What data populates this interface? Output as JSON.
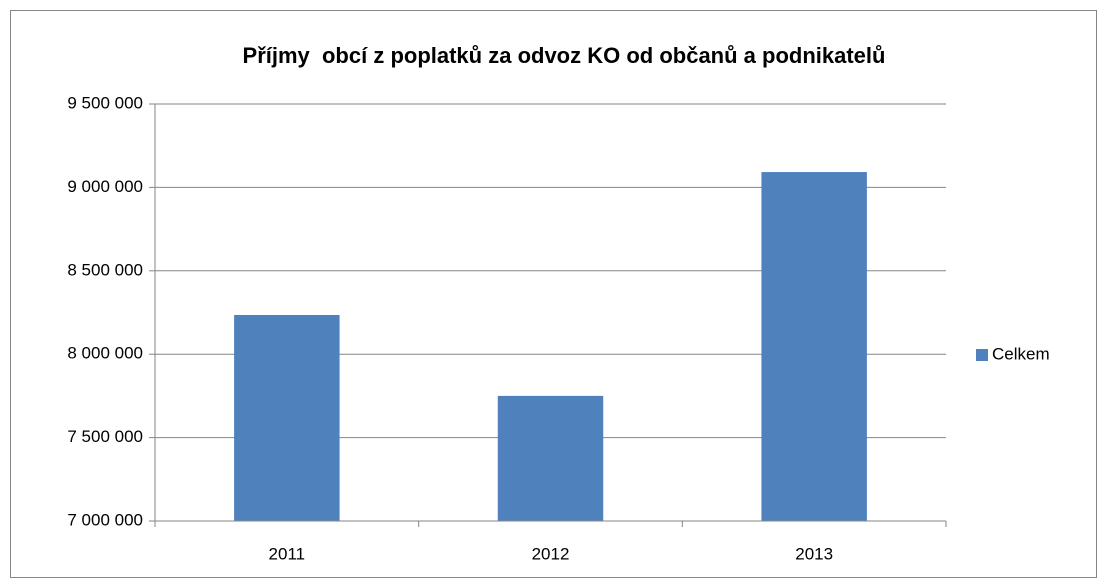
{
  "chart_data": {
    "type": "bar",
    "title": "Příjmy  obcí z poplatků za odvoz KO od občanů a podnikatelů",
    "categories": [
      "2011",
      "2012",
      "2013"
    ],
    "series": [
      {
        "name": "Celkem",
        "color": "#4f81bd",
        "values": [
          8235000,
          7750000,
          9092000
        ]
      }
    ],
    "ylim": [
      7000000,
      9500000
    ],
    "yticks": [
      {
        "value": 7000000,
        "label": "7 000 000"
      },
      {
        "value": 7500000,
        "label": "7 500 000"
      },
      {
        "value": 8000000,
        "label": "8 000 000"
      },
      {
        "value": 8500000,
        "label": "8 500 000"
      },
      {
        "value": 9000000,
        "label": "9 000 000"
      },
      {
        "value": 9500000,
        "label": "9 500 000"
      }
    ],
    "grid": true,
    "legend": "right"
  }
}
